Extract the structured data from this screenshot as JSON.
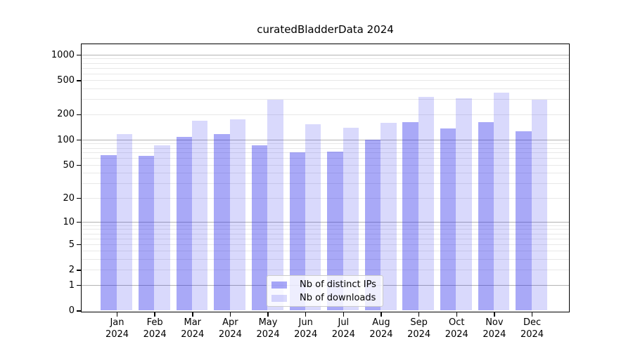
{
  "title": "curatedBladderData 2024",
  "chart_data": {
    "type": "bar",
    "title": "curatedBladderData 2024",
    "categories": [
      "Jan 2024",
      "Feb 2024",
      "Mar 2024",
      "Apr 2024",
      "May 2024",
      "Jun 2024",
      "Jul 2024",
      "Aug 2024",
      "Sep 2024",
      "Oct 2024",
      "Nov 2024",
      "Dec 2024"
    ],
    "series": [
      {
        "name": "Nb of distinct IPs",
        "color": "rgba(30,30,235,0.38)",
        "values": [
          65,
          64,
          108,
          117,
          85,
          70,
          72,
          100,
          162,
          135,
          160,
          125
        ]
      },
      {
        "name": "Nb of downloads",
        "color": "rgba(30,30,235,0.17)",
        "values": [
          117,
          85,
          168,
          172,
          295,
          153,
          138,
          158,
          318,
          310,
          355,
          298
        ]
      }
    ],
    "xlabel": "",
    "ylabel": "",
    "yscale": "log1p",
    "yticks": [
      0,
      1,
      2,
      5,
      10,
      20,
      50,
      100,
      200,
      500,
      1000
    ],
    "ylim": [
      0,
      1400
    ],
    "grid": true,
    "legend_position": "lower-center"
  },
  "colors": {
    "major_grid": "#b3b3b3",
    "minor_grid": "#e8e8e8",
    "axis": "#000000",
    "legend_border": "#cccccc"
  }
}
